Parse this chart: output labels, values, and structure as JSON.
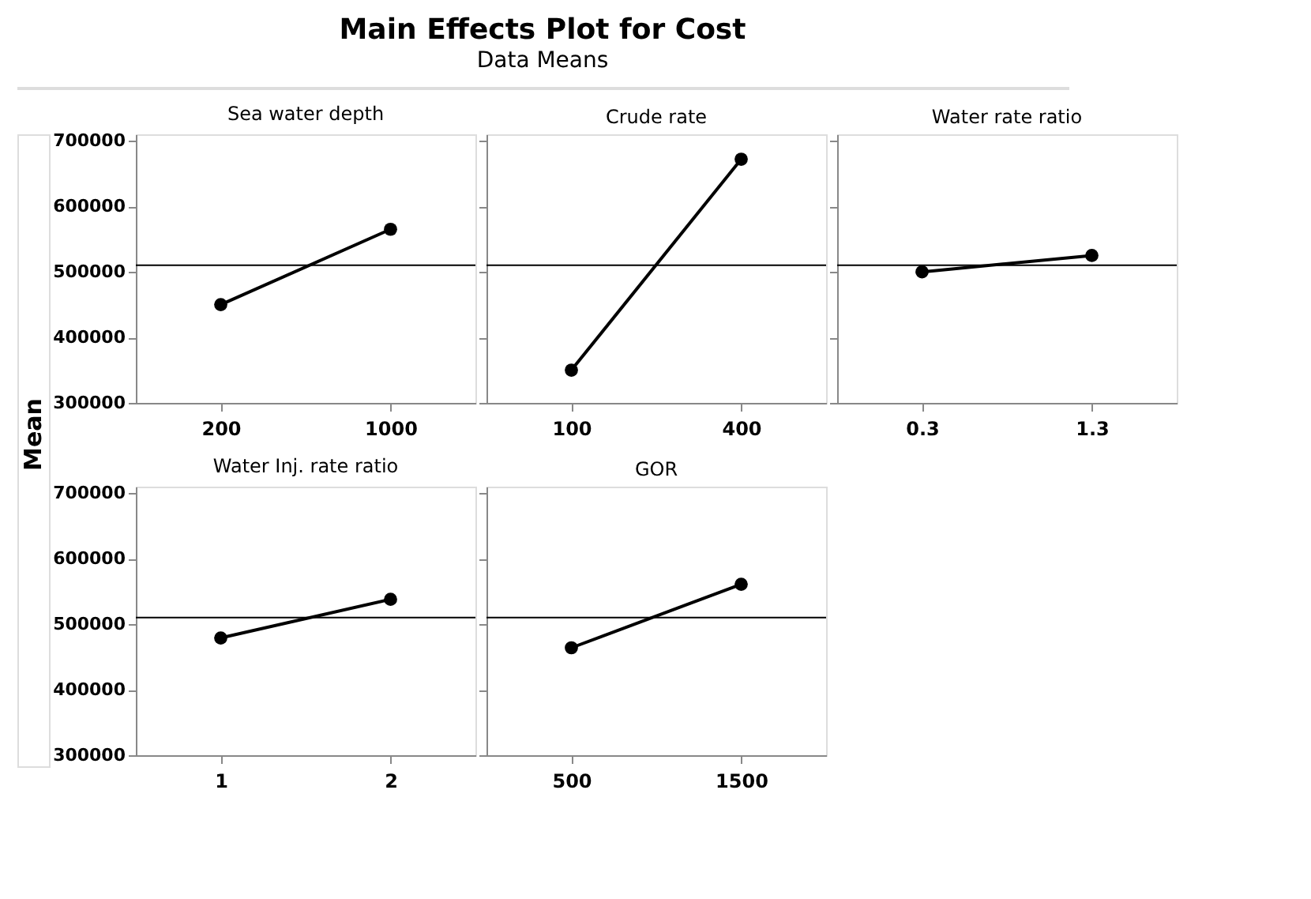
{
  "chart_data": [
    {
      "type": "other",
      "title": "Main Effects Plot for Cost",
      "subtitle": "Data Means",
      "ylabel": "Mean"
    },
    {
      "type": "line",
      "title": "Sea water depth",
      "categories": [
        "200",
        "1000"
      ],
      "values": [
        450000,
        565000
      ],
      "color": "#000000",
      "marker": "circle",
      "ylim": [
        300000,
        710000
      ],
      "yticks": [
        300000,
        400000,
        500000,
        600000,
        700000
      ],
      "ref_lines": [
        {
          "axis": "y",
          "value": 510000
        }
      ],
      "grid": false
    },
    {
      "type": "line",
      "title": "Crude rate",
      "categories": [
        "100",
        "400"
      ],
      "values": [
        350000,
        672000
      ],
      "color": "#000000",
      "marker": "circle",
      "ylim": [
        300000,
        710000
      ],
      "yticks": [
        300000,
        400000,
        500000,
        600000,
        700000
      ],
      "ref_lines": [
        {
          "axis": "y",
          "value": 510000
        }
      ],
      "grid": false,
      "tick_labels": "x"
    },
    {
      "type": "line",
      "title": "Water rate ratio",
      "categories": [
        "0.3",
        "1.3"
      ],
      "values": [
        500000,
        525000
      ],
      "color": "#000000",
      "marker": "circle",
      "ylim": [
        300000,
        710000
      ],
      "yticks": [
        300000,
        400000,
        500000,
        600000,
        700000
      ],
      "ref_lines": [
        {
          "axis": "y",
          "value": 510000
        }
      ],
      "grid": false,
      "tick_labels": "x"
    },
    {
      "type": "line",
      "title": "Water Inj. rate ratio",
      "categories": [
        "1",
        "2"
      ],
      "values": [
        479000,
        538000
      ],
      "color": "#000000",
      "marker": "circle",
      "ylim": [
        300000,
        710000
      ],
      "yticks": [
        300000,
        400000,
        500000,
        600000,
        700000
      ],
      "ref_lines": [
        {
          "axis": "y",
          "value": 510000
        }
      ],
      "grid": false
    },
    {
      "type": "line",
      "title": "GOR",
      "categories": [
        "500",
        "1500"
      ],
      "values": [
        464000,
        561000
      ],
      "color": "#000000",
      "marker": "circle",
      "ylim": [
        300000,
        710000
      ],
      "yticks": [
        300000,
        400000,
        500000,
        600000,
        700000
      ],
      "ref_lines": [
        {
          "axis": "y",
          "value": 510000
        }
      ],
      "grid": false,
      "tick_labels": "x"
    }
  ]
}
